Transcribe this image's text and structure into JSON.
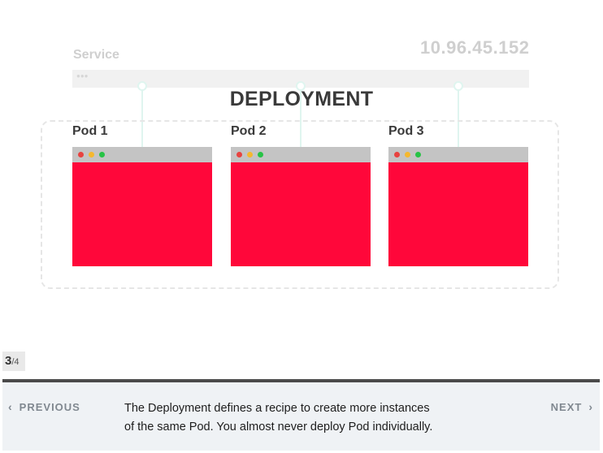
{
  "service": {
    "label": "Service",
    "ip": "10.96.45.152"
  },
  "deployment": {
    "title": "DEPLOYMENT"
  },
  "pods": [
    {
      "label": "Pod 1"
    },
    {
      "label": "Pod 2"
    },
    {
      "label": "Pod 3"
    }
  ],
  "colors": {
    "pod_body": "#ff073a",
    "window_bar": "#c4c4c4",
    "connector": "#dff5ef",
    "footer_bg": "#eff2f5"
  },
  "pager": {
    "current": "3",
    "total": "/4"
  },
  "footer": {
    "prev_label": "PREVIOUS",
    "next_label": "NEXT",
    "caption_line1": "The Deployment defines a recipe to create more instances",
    "caption_line2": "of the same Pod. You almost never deploy Pod individually."
  },
  "icons": {
    "prev": "chevron-left-icon",
    "next": "chevron-right-icon"
  }
}
